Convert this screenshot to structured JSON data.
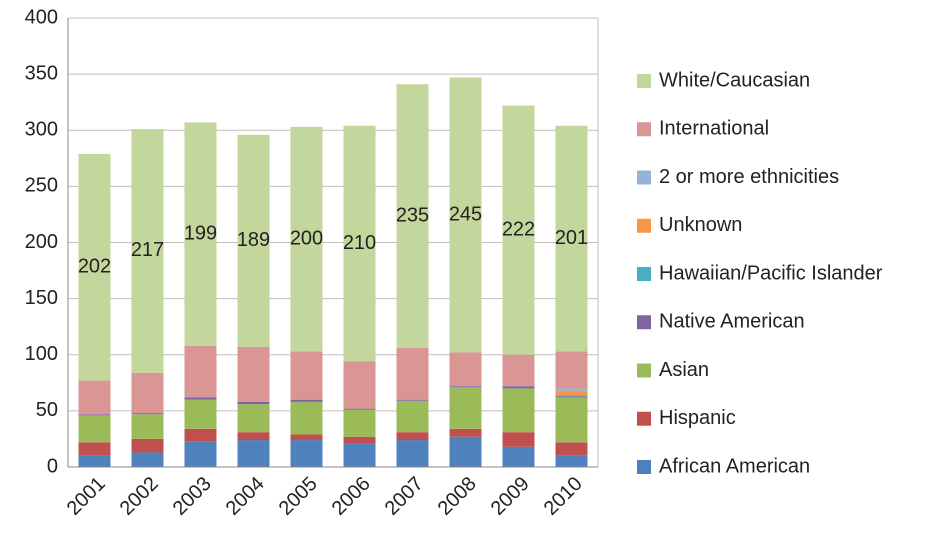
{
  "chart_data": {
    "type": "bar",
    "stacked": true,
    "categories": [
      "2001",
      "2002",
      "2003",
      "2004",
      "2005",
      "2006",
      "2007",
      "2008",
      "2009",
      "2010"
    ],
    "series": [
      {
        "name": "African American",
        "color": "#4f81bd",
        "values": [
          10,
          13,
          23,
          24,
          24,
          21,
          24,
          27,
          18,
          10
        ]
      },
      {
        "name": "Hispanic",
        "color": "#c0504d",
        "values": [
          12,
          12,
          11,
          7,
          5,
          6,
          7,
          7,
          13,
          12
        ]
      },
      {
        "name": "Asian",
        "color": "#9bbb59",
        "values": [
          24,
          22,
          26,
          25,
          29,
          24,
          28,
          37,
          39,
          40
        ]
      },
      {
        "name": "Native American",
        "color": "#8064a2",
        "values": [
          1,
          1,
          2,
          2,
          2,
          1,
          1,
          1,
          2,
          1
        ]
      },
      {
        "name": "Hawaiian/Pacific Islander",
        "color": "#4bacc6",
        "values": [
          0,
          0,
          0,
          0,
          0,
          0,
          0,
          0,
          0,
          1
        ]
      },
      {
        "name": "Unknown",
        "color": "#f79646",
        "values": [
          0,
          0,
          0,
          0,
          0,
          0,
          0,
          0,
          0,
          4
        ]
      },
      {
        "name": "2 or more ethnicities",
        "color": "#95b3d7",
        "values": [
          0,
          0,
          0,
          0,
          0,
          0,
          0,
          0,
          0,
          2
        ]
      },
      {
        "name": "International",
        "color": "#d99694",
        "values": [
          30,
          36,
          46,
          49,
          43,
          42,
          46,
          30,
          28,
          33
        ]
      },
      {
        "name": "White/Caucasian",
        "color": "#c3d69b",
        "values": [
          202,
          217,
          199,
          189,
          200,
          210,
          235,
          245,
          222,
          201
        ],
        "show_labels": true
      }
    ],
    "ylim": [
      0,
      400
    ],
    "yticks": [
      0,
      50,
      100,
      150,
      200,
      250,
      300,
      350,
      400
    ],
    "grid": true,
    "legend": "right"
  }
}
